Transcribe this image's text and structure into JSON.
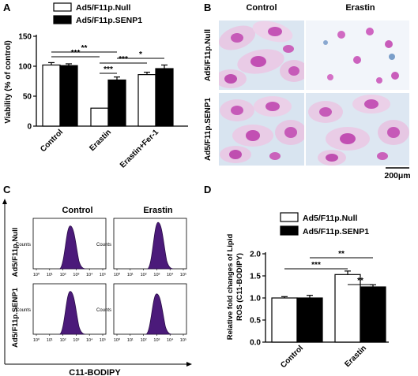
{
  "panels": {
    "A": "A",
    "B": "B",
    "C": "C",
    "D": "D"
  },
  "colors": {
    "null_fill": "#ffffff",
    "senp1_fill": "#000000",
    "histogram_fill": "#4b1a7a",
    "micro_background": "#dfe8f3",
    "nucleus": "#c65ab8"
  },
  "panel_a": {
    "legend": [
      "Ad5/F11p.Null",
      "Ad5/F11p.SENP1"
    ],
    "chart_data": {
      "type": "bar",
      "categories": [
        "Control",
        "Erastin",
        "Erastin+Fer-1"
      ],
      "series": [
        {
          "name": "Ad5/F11p.Null",
          "values": [
            102,
            30,
            86
          ],
          "errors": [
            4,
            0,
            4
          ]
        },
        {
          "name": "Ad5/F11p.SENP1",
          "values": [
            101,
            77,
            96
          ],
          "errors": [
            3,
            5,
            6
          ]
        }
      ],
      "xlabel": "",
      "ylabel": "Viability (% of control)",
      "ylim": [
        0,
        150
      ],
      "yticks": [
        "0",
        "50",
        "100",
        "150"
      ],
      "significance": [
        {
          "text": "***",
          "from": [
            0,
            0
          ],
          "to": [
            1,
            0
          ]
        },
        {
          "text": "**",
          "from": [
            0,
            0
          ],
          "to": [
            1,
            1
          ]
        },
        {
          "text": "***",
          "from": [
            1,
            0
          ],
          "to": [
            2,
            0
          ]
        },
        {
          "text": "*",
          "from": [
            1,
            1
          ],
          "to": [
            2,
            1
          ]
        },
        {
          "text": "***",
          "from": [
            1,
            0
          ],
          "to": [
            1,
            1
          ]
        }
      ]
    }
  },
  "panel_b": {
    "columns": [
      "Control",
      "Erastin"
    ],
    "rows": [
      "Ad5/F11p.Null",
      "Ad5/F11p.SENP1"
    ],
    "scale_bar": "200μm"
  },
  "panel_c": {
    "columns": [
      "Control",
      "Erastin"
    ],
    "rows": [
      "Ad5/F11p.Null",
      "Ad5/F11p.SENP1"
    ],
    "y_tick_label": "Counts",
    "x_tick_labels": [
      "10⁰",
      "10¹",
      "10²",
      "10³",
      "10⁴",
      "10⁵"
    ],
    "xlabel": "C11-BODIPY"
  },
  "panel_d": {
    "legend": [
      "Ad5/F11p.Null",
      "Ad5/F11p.SENP1"
    ],
    "chart_data": {
      "type": "bar",
      "categories": [
        "Control",
        "Erastin"
      ],
      "series": [
        {
          "name": "Ad5/F11p.Null",
          "values": [
            1.0,
            1.53
          ],
          "errors": [
            0.03,
            0.08
          ]
        },
        {
          "name": "Ad5/F11p.SENP1",
          "values": [
            1.0,
            1.25
          ],
          "errors": [
            0.06,
            0.05
          ]
        }
      ],
      "xlabel": "",
      "ylabel": "Relative fold changes of Lipid ROS (C11-BODIPY)",
      "ylabel_lines": [
        "Relative fold changes of Lipid",
        "ROS (C11-BODIPY)"
      ],
      "ylim": [
        0,
        2.0
      ],
      "yticks": [
        "0.0",
        "0.5",
        "1.0",
        "1.5",
        "2.0"
      ],
      "significance": [
        {
          "text": "**",
          "from": [
            0,
            1
          ],
          "to": [
            1,
            1
          ]
        },
        {
          "text": "***",
          "from": [
            0,
            0
          ],
          "to": [
            1,
            0
          ]
        },
        {
          "text": "**",
          "from": [
            1,
            0
          ],
          "to": [
            1,
            1
          ]
        }
      ]
    }
  }
}
